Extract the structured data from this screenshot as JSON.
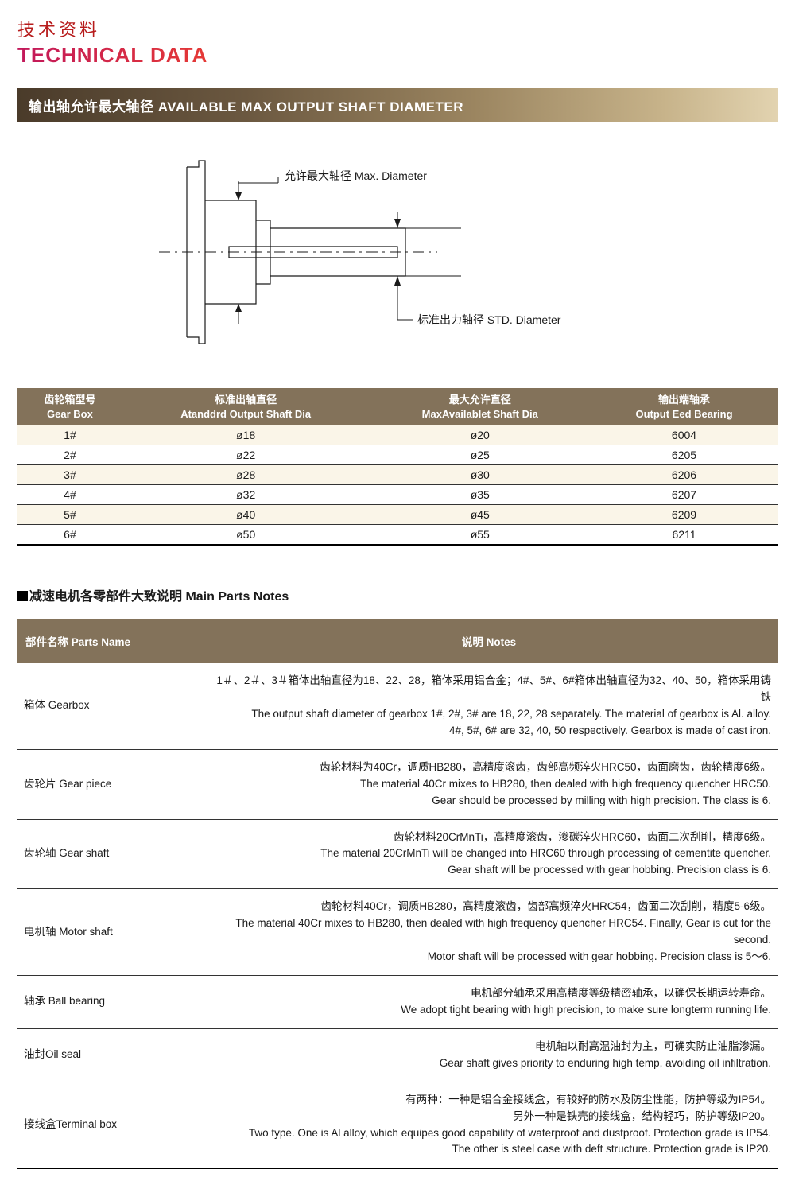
{
  "header": {
    "title_cn": "技术资料",
    "title_en": "TECHNICAL DATA"
  },
  "banner": {
    "text": "输出轴允许最大轴径 AVAILABLE MAX OUTPUT SHAFT DIAMETER"
  },
  "diagram": {
    "label_max": "允许最大轴径 Max. Diameter",
    "label_std": "标准出力轴径 STD. Diameter",
    "stroke_color": "#1a1a1a",
    "label_fontsize": 14
  },
  "shaft_table": {
    "header_bg": "#83725a",
    "row_odd_bg": "#faf5e8",
    "row_even_bg": "#ffffff",
    "columns": [
      {
        "cn": "齿轮箱型号",
        "en": "Gear Box"
      },
      {
        "cn": "标准出轴直径",
        "en": "Atanddrd Output Shaft Dia"
      },
      {
        "cn": "最大允许直径",
        "en": "MaxAvailablet Shaft Dia"
      },
      {
        "cn": "输出端轴承",
        "en": "Output Eed Bearing"
      }
    ],
    "rows": [
      [
        "1#",
        "ø18",
        "ø20",
        "6004"
      ],
      [
        "2#",
        "ø22",
        "ø25",
        "6205"
      ],
      [
        "3#",
        "ø28",
        "ø30",
        "6206"
      ],
      [
        "4#",
        "ø32",
        "ø35",
        "6207"
      ],
      [
        "5#",
        "ø40",
        "ø45",
        "6209"
      ],
      [
        "6#",
        "ø50",
        "ø55",
        "6211"
      ]
    ]
  },
  "parts_section": {
    "title": "减速电机各零部件大致说明  Main Parts Notes"
  },
  "parts_table": {
    "header_bg": "#83725a",
    "col_name": "部件名称 Parts Name",
    "col_notes": "说明 Notes",
    "rows": [
      {
        "name": "箱体 Gearbox",
        "notes": [
          "1＃、2＃、3＃箱体出轴直径为18、22、28，箱体采用铝合金；4#、5#、6#箱体出轴直径为32、40、50，箱体采用铸铁",
          "The output shaft diameter of gearbox 1#, 2#, 3# are 18, 22, 28 separately. The material of gearbox is Al. alloy.",
          "4#, 5#, 6# are 32, 40, 50 respectively. Gearbox is made of cast iron."
        ]
      },
      {
        "name": "齿轮片 Gear piece",
        "notes": [
          "齿轮材料为40Cr，调质HB280，高精度滚齿，齿部高频淬火HRC50，齿面磨齿，齿轮精度6级。",
          "The material 40Cr mixes to HB280, then dealed with high frequency quencher HRC50.",
          "Gear should be processed by milling with high precision. The class is 6."
        ]
      },
      {
        "name": "齿轮轴 Gear shaft",
        "notes": [
          "齿轮材料20CrMnTi，高精度滚齿，渗碳淬火HRC60，齿面二次刮削，精度6级。",
          "The material 20CrMnTi will be changed into HRC60 through processing of cementite quencher.",
          "Gear shaft will be processed with gear hobbing. Precision class is 6."
        ]
      },
      {
        "name": "电机轴 Motor shaft",
        "notes": [
          "齿轮材料40Cr，调质HB280，高精度滚齿，齿部高频淬火HRC54，齿面二次刮削，精度5-6级。",
          "The material 40Cr mixes to HB280, then dealed with high frequency quencher HRC54. Finally, Gear is cut for the second.",
          "Motor shaft will be processed with gear hobbing. Precision class is 5～6."
        ]
      },
      {
        "name": "轴承 Ball bearing",
        "notes": [
          "电机部分轴承采用高精度等级精密轴承，以确保长期运转寿命。",
          "We adopt tight bearing with high precision, to make sure longterm running life."
        ]
      },
      {
        "name": "油封Oil seal",
        "notes": [
          "电机轴以耐高温油封为主，可确实防止油脂渗漏。",
          "Gear shaft gives priority to enduring high temp, avoiding oil infiltration."
        ]
      },
      {
        "name": "接线盒Terminal box",
        "notes": [
          "有两种：一种是铝合金接线盒，有较好的防水及防尘性能，防护等级为IP54。",
          "另外一种是铁壳的接线盒，结构轻巧，防护等级IP20。",
          "Two type. One is Al alloy, which equipes good capability of waterproof and dustproof. Protection grade is IP54.",
          "The other is steel case with deft structure.  Protection grade is IP20."
        ]
      }
    ]
  }
}
